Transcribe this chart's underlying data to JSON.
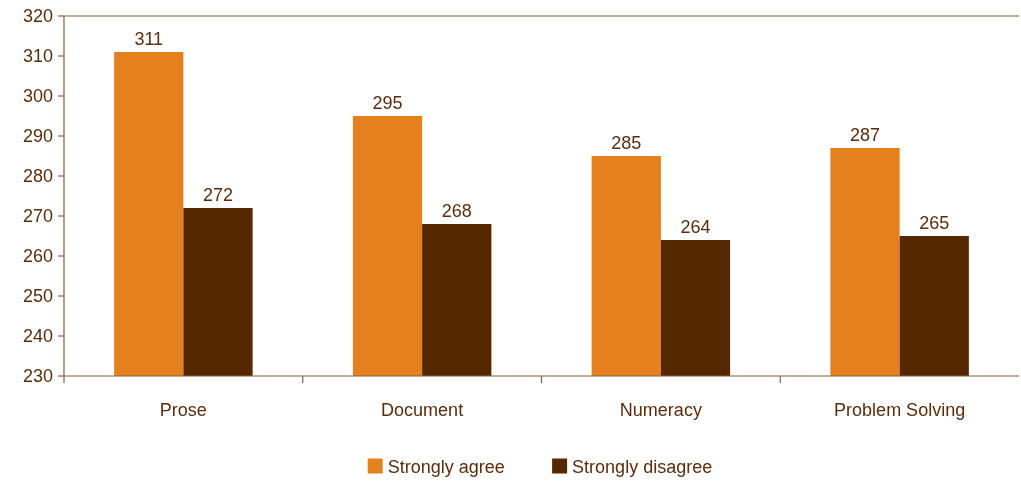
{
  "chart_data": {
    "type": "bar",
    "categories": [
      "Prose",
      "Document",
      "Numeracy",
      "Problem Solving"
    ],
    "series": [
      {
        "name": "Strongly agree",
        "color": "#e5801f",
        "values": [
          311,
          295,
          285,
          287
        ]
      },
      {
        "name": "Strongly disagree",
        "color": "#562800",
        "values": [
          272,
          268,
          264,
          265
        ]
      }
    ],
    "ylim": [
      230,
      320
    ],
    "yticks": [
      230,
      240,
      250,
      260,
      270,
      280,
      290,
      300,
      310,
      320
    ],
    "data_labels": true,
    "legend": "bottom"
  }
}
